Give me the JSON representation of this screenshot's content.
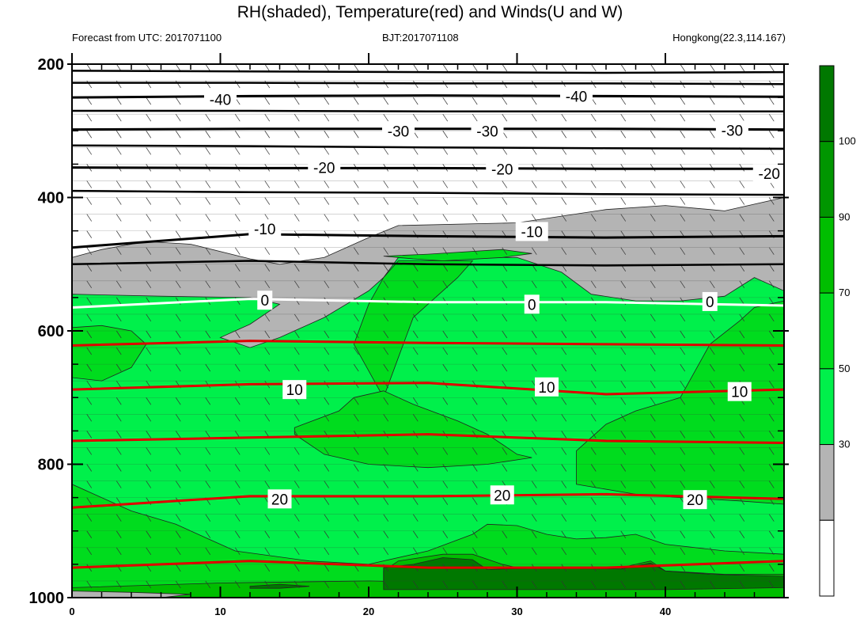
{
  "chart_data": {
    "type": "heatmap",
    "title": "RH(shaded), Temperature(red) and Winds(U and W)",
    "subtitle_left": "Forecast from UTC: 2017071100",
    "subtitle_center": "BJT:2017071108",
    "subtitle_right": "Hongkong(22.3,114.167)",
    "x_ticks": [
      "0",
      "10",
      "20",
      "30",
      "40"
    ],
    "x_tick_values": [
      0,
      10,
      20,
      30,
      40
    ],
    "xlim": [
      0,
      48
    ],
    "y_ticks": [
      "200",
      "400",
      "600",
      "800",
      "1000"
    ],
    "y_tick_values": [
      200,
      400,
      600,
      800,
      1000
    ],
    "ylim": [
      200,
      1000
    ],
    "colorbar": {
      "labels": [
        "30",
        "50",
        "70",
        "90",
        "100"
      ],
      "levels": [
        30,
        50,
        70,
        90,
        100
      ],
      "colors": [
        "#ffffff",
        "#b4b4b4",
        "#00f04b",
        "#00dc1e",
        "#00be00",
        "#009600",
        "#007800"
      ]
    },
    "rh_regions": [
      {
        "name": "dry-upper",
        "level": 30,
        "color": "#ffffff"
      },
      {
        "name": "gray",
        "level": 50,
        "color": "#b4b4b4"
      },
      {
        "name": "light-green",
        "level": 70,
        "color": "#00f04b"
      },
      {
        "name": "mid-green",
        "level": 90,
        "color": "#00dc1e"
      },
      {
        "name": "green",
        "level": 90,
        "color": "#00be00"
      },
      {
        "name": "dark-green",
        "level": 100,
        "color": "#007800"
      }
    ],
    "temperature_contours": [
      {
        "value": -40,
        "label": "-40",
        "color": "#000000",
        "y": [
          250,
          248,
          247,
          248,
          249
        ]
      },
      {
        "value": -30,
        "label": "-30",
        "color": "#000000",
        "y": [
          298,
          297,
          297,
          297,
          298
        ]
      },
      {
        "value": -20,
        "label": "-20",
        "color": "#000000",
        "y": [
          355,
          356,
          356,
          357,
          357
        ]
      },
      {
        "value": -10,
        "label": "-10",
        "color": "#000000",
        "y": [
          475,
          455,
          458,
          460,
          458
        ]
      },
      {
        "value": 0,
        "label": "0",
        "color": "#ffffff",
        "y": [
          565,
          552,
          557,
          557,
          562
        ]
      },
      {
        "value": 10,
        "label": "10",
        "color": "#e00000",
        "y": [
          688,
          680,
          678,
          695,
          688
        ]
      },
      {
        "value": 20,
        "label": "20",
        "color": "#e00000",
        "y": [
          865,
          848,
          848,
          845,
          852
        ]
      }
    ],
    "temperature_labels": [
      {
        "text": "-40",
        "x": 10,
        "y": 253
      },
      {
        "text": "-40",
        "x": 34,
        "y": 248
      },
      {
        "text": "-30",
        "x": 22,
        "y": 300
      },
      {
        "text": "-30",
        "x": 28,
        "y": 300
      },
      {
        "text": "-30",
        "x": 44.5,
        "y": 299
      },
      {
        "text": "-20",
        "x": 17,
        "y": 355
      },
      {
        "text": "-20",
        "x": 29,
        "y": 357
      },
      {
        "text": "-20",
        "x": 47,
        "y": 364
      },
      {
        "text": "-10",
        "x": 13,
        "y": 447
      },
      {
        "text": "-10",
        "x": 31,
        "y": 451
      },
      {
        "text": "0",
        "x": 13,
        "y": 554
      },
      {
        "text": "0",
        "x": 31,
        "y": 560
      },
      {
        "text": "0",
        "x": 43,
        "y": 556
      },
      {
        "text": "10",
        "x": 15,
        "y": 688
      },
      {
        "text": "10",
        "x": 32,
        "y": 684
      },
      {
        "text": "10",
        "x": 45,
        "y": 691
      },
      {
        "text": "20",
        "x": 14,
        "y": 852
      },
      {
        "text": "20",
        "x": 29,
        "y": 846
      },
      {
        "text": "20",
        "x": 42,
        "y": 853
      }
    ],
    "wind_barbs": "short diagonal wind barbs plotted at every grid point",
    "grid": false
  }
}
